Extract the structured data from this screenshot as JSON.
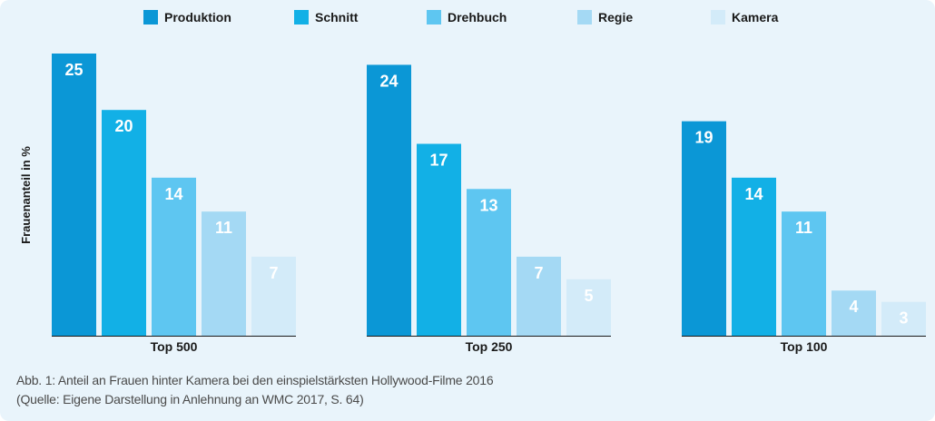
{
  "chart_data": {
    "type": "bar",
    "ylabel": "Frauenanteil in %",
    "categories": [
      "Top 500",
      "Top 250",
      "Top 100"
    ],
    "series": [
      {
        "name": "Produktion",
        "color": "#0b97d6",
        "values": [
          25,
          24,
          19
        ]
      },
      {
        "name": "Schnitt",
        "color": "#12b0e6",
        "values": [
          20,
          17,
          14
        ]
      },
      {
        "name": "Drehbuch",
        "color": "#5ec6f1",
        "values": [
          14,
          13,
          11
        ]
      },
      {
        "name": "Regie",
        "color": "#a4d9f4",
        "values": [
          11,
          7,
          4
        ]
      },
      {
        "name": "Kamera",
        "color": "#d3ebf9",
        "values": [
          7,
          5,
          3
        ]
      }
    ],
    "ylim": [
      0,
      25
    ],
    "grid": false,
    "legend_position": "top-center"
  },
  "caption": {
    "line1": "Abb. 1: Anteil an Frauen hinter Kamera bei den einspielstärksten Hollywood-Filme 2016",
    "line2": "(Quelle: Eigene Darstellung in Anlehnung an WMC 2017, S. 64)"
  }
}
